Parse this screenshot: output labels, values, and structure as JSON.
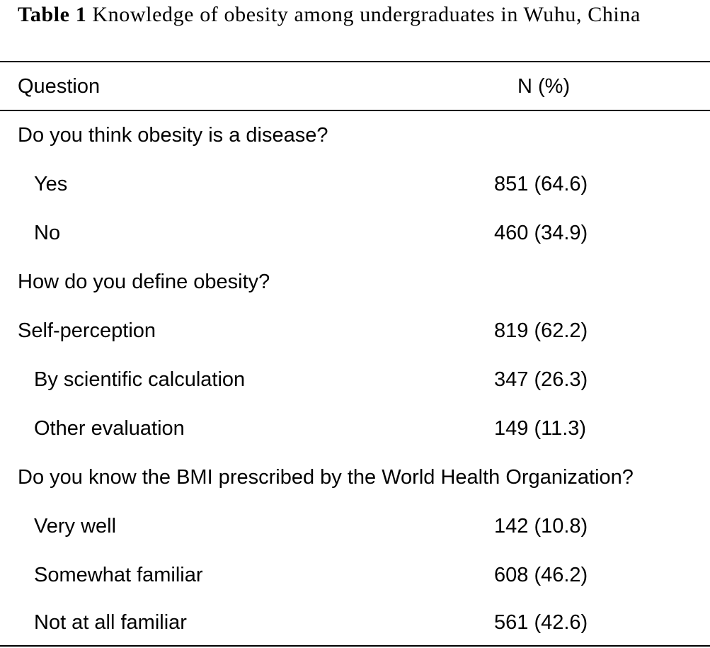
{
  "caption": {
    "label": "Table 1",
    "title": "Knowledge of obesity among undergraduates in Wuhu, China"
  },
  "table": {
    "headers": {
      "question": "Question",
      "n_pct": "N (%)"
    },
    "rows": [
      {
        "question": "Do you think obesity is a disease?",
        "value": "",
        "indent": false
      },
      {
        "question": "Yes",
        "value": "851 (64.6)",
        "indent": true
      },
      {
        "question": "No",
        "value": "460 (34.9)",
        "indent": true
      },
      {
        "question": "How do you define obesity?",
        "value": "",
        "indent": false
      },
      {
        "question": "Self-perception",
        "value": "819 (62.2)",
        "indent": false
      },
      {
        "question": "By scientific calculation",
        "value": "347 (26.3)",
        "indent": true
      },
      {
        "question": "Other evaluation",
        "value": "149 (11.3)",
        "indent": true
      },
      {
        "question": "Do you know the BMI prescribed by the World Health Organization?",
        "value": "",
        "indent": false
      },
      {
        "question": "Very well",
        "value": "142 (10.8)",
        "indent": true
      },
      {
        "question": "Somewhat familiar",
        "value": "608 (46.2)",
        "indent": true
      },
      {
        "question": "Not at all familiar",
        "value": "561 (42.6)",
        "indent": true
      }
    ]
  }
}
